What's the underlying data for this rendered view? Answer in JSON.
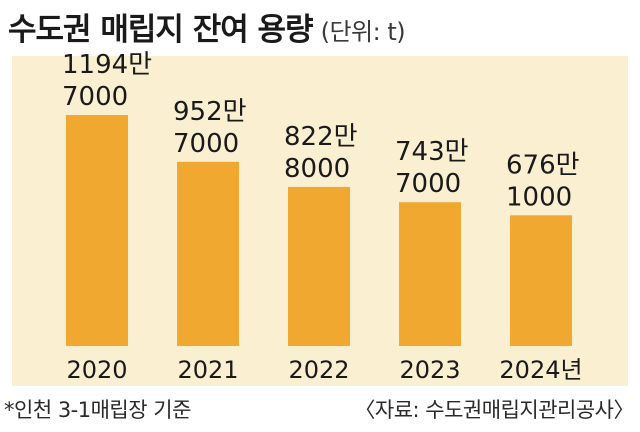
{
  "chart_data": {
    "type": "bar",
    "title": "수도권 매립지 잔여 용량",
    "unit_label": "(단위: t)",
    "categories": [
      "2020",
      "2021",
      "2022",
      "2023",
      "2024년"
    ],
    "values": [
      11947000,
      9527000,
      8228000,
      7437000,
      6761000
    ],
    "value_labels": [
      [
        "1194만",
        "7000"
      ],
      [
        "952만",
        "7000"
      ],
      [
        "822만",
        "8000"
      ],
      [
        "743만",
        "7000"
      ],
      [
        "676만",
        "1000"
      ]
    ],
    "ylim": [
      0,
      15000000
    ],
    "bar_color": "#f0a830",
    "background_color": "#fbefd2",
    "grid": false,
    "legend": "none"
  },
  "footer": {
    "note": "*인천 3-1매립장 기준",
    "source": "〈자료: 수도권매립지관리공사〉"
  }
}
